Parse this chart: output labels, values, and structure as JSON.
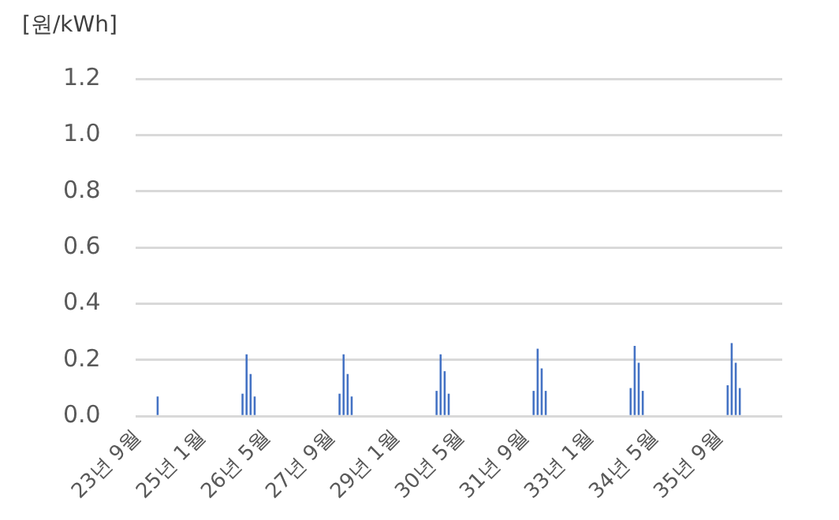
{
  "chart_data": {
    "type": "bar",
    "ylabel": "[원/kWh]",
    "categories": [
      "23년 9월",
      null,
      null,
      null,
      null,
      null,
      null,
      null,
      null,
      null,
      null,
      null,
      null,
      null,
      null,
      null,
      "25년 1월",
      null,
      null,
      null,
      null,
      null,
      null,
      null,
      null,
      null,
      null,
      null,
      null,
      null,
      null,
      null,
      "26년 5월",
      null,
      null,
      null,
      null,
      null,
      null,
      null,
      null,
      null,
      null,
      null,
      null,
      null,
      null,
      null,
      "27년 9월",
      null,
      null,
      null,
      null,
      null,
      null,
      null,
      null,
      null,
      null,
      null,
      null,
      null,
      null,
      null,
      "29년 1월",
      null,
      null,
      null,
      null,
      null,
      null,
      null,
      null,
      null,
      null,
      null,
      null,
      null,
      null,
      null,
      "30년 5월",
      null,
      null,
      null,
      null,
      null,
      null,
      null,
      null,
      null,
      null,
      null,
      null,
      null,
      null,
      null,
      "31년 9월",
      null,
      null,
      null,
      null,
      null,
      null,
      null,
      null,
      null,
      null,
      null,
      null,
      null,
      null,
      null,
      "33년 1월",
      null,
      null,
      null,
      null,
      null,
      null,
      null,
      null,
      null,
      null,
      null,
      null,
      null,
      null,
      null,
      "34년 5월",
      null,
      null,
      null,
      null,
      null,
      null,
      null,
      null,
      null,
      null,
      null,
      null,
      null,
      null,
      null,
      "35년 9월",
      null,
      null,
      null,
      null,
      null,
      null,
      null,
      null,
      null,
      null,
      null,
      null,
      null,
      null,
      null
    ],
    "values": [
      0,
      0,
      0,
      0,
      0,
      0.07,
      0,
      0,
      0,
      0,
      0,
      0,
      0,
      0,
      0,
      0,
      0,
      0,
      0,
      0,
      0,
      0,
      0,
      0,
      0,
      0,
      0.08,
      0.22,
      0.15,
      0.07,
      0,
      0,
      0,
      0,
      0,
      0,
      0,
      0,
      0,
      0,
      0,
      0,
      0,
      0,
      0,
      0,
      0,
      0,
      0,
      0,
      0.08,
      0.22,
      0.15,
      0.07,
      0,
      0,
      0,
      0,
      0,
      0,
      0,
      0,
      0,
      0,
      0,
      0,
      0,
      0,
      0,
      0,
      0,
      0,
      0,
      0,
      0.09,
      0.22,
      0.16,
      0.08,
      0,
      0,
      0,
      0,
      0,
      0,
      0,
      0,
      0,
      0,
      0,
      0,
      0,
      0,
      0,
      0,
      0,
      0,
      0,
      0,
      0.09,
      0.24,
      0.17,
      0.09,
      0,
      0,
      0,
      0,
      0,
      0,
      0,
      0,
      0,
      0,
      0,
      0,
      0,
      0,
      0,
      0,
      0,
      0,
      0,
      0,
      0.1,
      0.25,
      0.19,
      0.09,
      0,
      0,
      0,
      0,
      0,
      0,
      0,
      0,
      0,
      0,
      0,
      0,
      0,
      0,
      0,
      0,
      0,
      0,
      0,
      0,
      0.11,
      0.26,
      0.19,
      0.1,
      0,
      0,
      0,
      0,
      0,
      0,
      0,
      0,
      0,
      0
    ],
    "color": "#4472c4",
    "ylim": [
      0,
      1.2
    ],
    "yticks": [
      {
        "value": 0,
        "label": "0.0"
      },
      0.2,
      0.4,
      0.6,
      0.8,
      {
        "value": 1,
        "label": "1.0"
      },
      1.2
    ],
    "grid": "y",
    "legend": false
  }
}
